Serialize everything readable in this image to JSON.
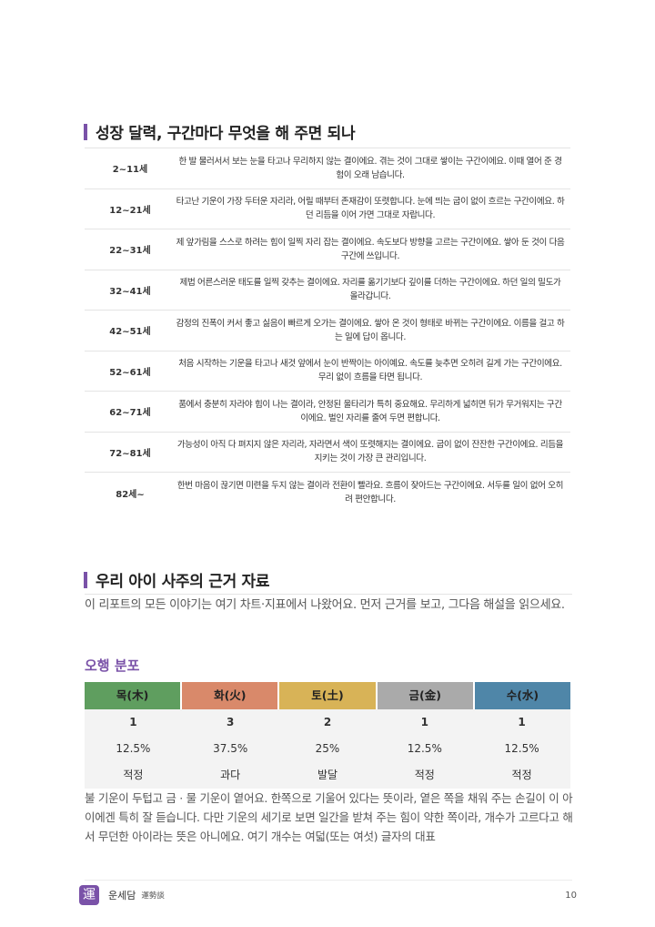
{
  "section1": {
    "title": "성장 달력, 구간마다 무엇을 해 주면 되나"
  },
  "periods": [
    {
      "age": "2~11세",
      "desc": "한 발 물러서서 보는 눈을 타고나 무리하지 않는 결이에요. 겪는 것이 그대로 쌓이는 구간이에요. 이때 열어 준 경험이 오래 남습니다."
    },
    {
      "age": "12~21세",
      "desc": "타고난 기운이 가장 두터운 자리라, 어릴 때부터 존재감이 또렷합니다. 눈에 띄는 굽이 없이 흐르는 구간이에요. 하던 리듬을 이어 가면 그대로 자랍니다."
    },
    {
      "age": "22~31세",
      "desc": "제 앞가림을 스스로 하려는 힘이 일찍 자리 잡는 결이에요. 속도보다 방향을 고르는 구간이에요. 쌓아 둔 것이 다음 구간에 쓰입니다."
    },
    {
      "age": "32~41세",
      "desc": "제법 어른스러운 태도를 일찍 갖추는 결이에요. 자리를 옮기기보다 깊이를 더하는 구간이에요. 하던 일의 밀도가 올라갑니다."
    },
    {
      "age": "42~51세",
      "desc": "감정의 진폭이 커서 좋고 싫음이 빠르게 오가는 결이에요. 쌓아 온 것이 형태로 바뀌는 구간이에요. 이름을 걸고 하는 일에 답이 옵니다."
    },
    {
      "age": "52~61세",
      "desc": "처음 시작하는 기운을 타고나 새것 앞에서 눈이 반짝이는 아이예요. 속도를 늦추면 오히려 길게 가는 구간이에요. 무리 없이 흐름을 타면 됩니다."
    },
    {
      "age": "62~71세",
      "desc": "품에서 충분히 자라야 힘이 나는 결이라, 안정된 울타리가 특히 중요해요. 무리하게 넓히면 뒤가 무거워지는 구간이에요. 벌인 자리를 줄여 두면 편합니다."
    },
    {
      "age": "72~81세",
      "desc": "가능성이 아직 다 펴지지 않은 자리라, 자라면서 색이 또렷해지는 결이에요. 굽이 없이 잔잔한 구간이에요. 리듬을 지키는 것이 가장 큰 관리입니다."
    },
    {
      "age": "82세~",
      "desc": "한번 마음이 끊기면 미련을 두지 않는 결이라 전환이 빨라요. 흐름이 잦아드는 구간이에요. 서두를 일이 없어 오히려 편안합니다."
    }
  ],
  "section2": {
    "title": "우리 아이 사주의 근거 자료",
    "intro": "이 리포트의 모든 이야기는 여기 차트·지표에서 나왔어요. 먼저 근거를 보고, 그다음 해설을 읽으세요."
  },
  "wuxing": {
    "title": "오행 분포",
    "elements": [
      {
        "name": "목(木)",
        "count": "1",
        "percent": "12.5%",
        "status": "적정",
        "color": "#5f9e5f"
      },
      {
        "name": "화(火)",
        "count": "3",
        "percent": "37.5%",
        "status": "과다",
        "color": "#d9896a"
      },
      {
        "name": "토(土)",
        "count": "2",
        "percent": "25%",
        "status": "발달",
        "color": "#d8b357"
      },
      {
        "name": "금(金)",
        "count": "1",
        "percent": "12.5%",
        "status": "적정",
        "color": "#aaaaaa"
      },
      {
        "name": "수(水)",
        "count": "1",
        "percent": "12.5%",
        "status": "적정",
        "color": "#4f86a8"
      }
    ]
  },
  "note": "불 기운이 두텁고 금 · 물 기운이 옅어요. 한쪽으로 기울어 있다는 뜻이라, 옅은 쪽을 채워 주는 손길이 이 아이에겐 특히 잘 듣습니다. 다만 기운의 세기로 보면 일간을 받쳐 주는 힘이 약한 쪽이라, 개수가 고르다고 해서 무던한 아이라는 뜻은 아니에요. 여기 개수는 여덟(또는 여섯) 글자의 대표",
  "footer": {
    "logo": "運",
    "brand": "운세담",
    "brand_sub": "運勢談",
    "page": "10"
  }
}
